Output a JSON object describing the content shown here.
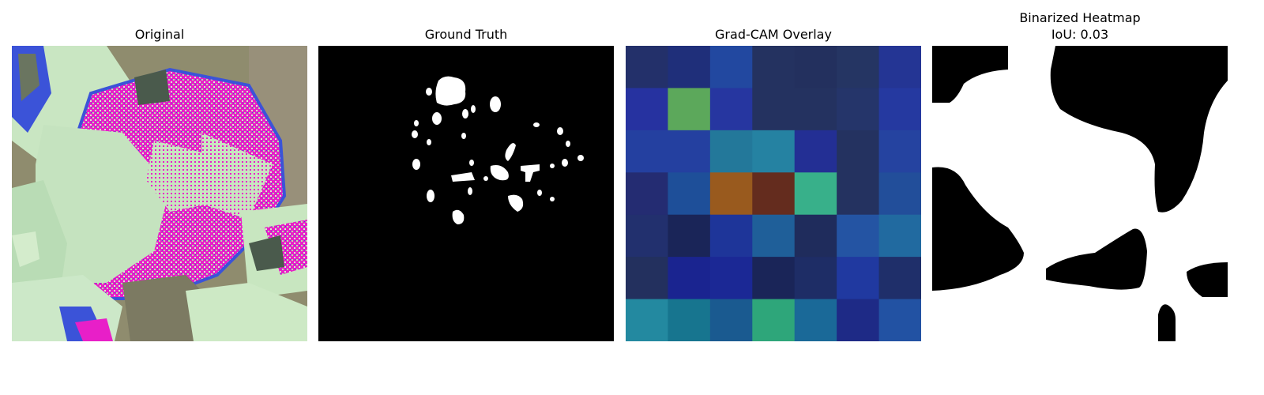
{
  "panels": [
    {
      "title": "Original"
    },
    {
      "title": "Ground Truth"
    },
    {
      "title": "Grad-CAM Overlay"
    },
    {
      "title": "Binarized Heatmap",
      "subtitle": "IoU: 0.03"
    }
  ],
  "gradcam_grid": [
    [
      "#23306a",
      "#1f2f7a",
      "#2248a0",
      "#243260",
      "#23305e",
      "#253563",
      "#243594"
    ],
    [
      "#2632a0",
      "#5ca85b",
      "#2636a0",
      "#243260",
      "#243260",
      "#25356a",
      "#2539a0"
    ],
    [
      "#2440a0",
      "#2440a0",
      "#23789a",
      "#2582a2",
      "#232f94",
      "#243260",
      "#2543a0"
    ],
    [
      "#242c72",
      "#1e4f99",
      "#995a1e",
      "#642c1e",
      "#38b08a",
      "#243260",
      "#224e9a"
    ],
    [
      "#22306e",
      "#1a2558",
      "#1e3599",
      "#1f5f99",
      "#1f2c5c",
      "#2454a3",
      "#216aa0"
    ],
    [
      "#23305e",
      "#1a2490",
      "#1b2895",
      "#1a2558",
      "#1e2d66",
      "#2039a0",
      "#1f2f6a"
    ],
    [
      "#2389a0",
      "#17758f",
      "#1a5a90",
      "#2ea67a",
      "#1a6998",
      "#1e2a86",
      "#2252a3"
    ]
  ]
}
